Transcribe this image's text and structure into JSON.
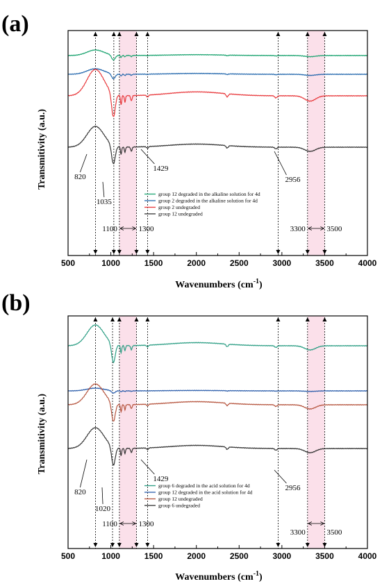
{
  "chart_data": [
    {
      "type": "line",
      "panel_label": "(a)",
      "xlabel": "Wavenumbers (cm",
      "xlabel_sup": "-1",
      "xlabel_end": ")",
      "ylabel": "Transmitivity (a.u.)",
      "xlim": [
        500,
        4000
      ],
      "xticks": [
        500,
        1000,
        1500,
        2000,
        2500,
        3000,
        3500,
        4000
      ],
      "bands": [
        [
          1100,
          1300
        ],
        [
          3300,
          3500
        ]
      ],
      "vlines": [
        820,
        1035,
        1100,
        1300,
        1429,
        2956,
        3300,
        3500
      ],
      "annotations": [
        {
          "text": "820",
          "x": 820
        },
        {
          "text": "1035",
          "x": 1035
        },
        {
          "text": "1100",
          "x": 1100
        },
        {
          "text": "1300",
          "x": 1300
        },
        {
          "text": "1429",
          "x": 1429
        },
        {
          "text": "2956",
          "x": 2956
        },
        {
          "text": "3300",
          "x": 3300
        },
        {
          "text": "3500",
          "x": 3500
        }
      ],
      "series": [
        {
          "name": "group 12 degraded in the alkaline solution for 4d",
          "color": "#1aa36f"
        },
        {
          "name": "group 2 degraded in the alkaline solution for 4d",
          "color": "#2166ac"
        },
        {
          "name": "group 2 undegraded",
          "color": "#e8373a"
        },
        {
          "name": "group 12 undegraded",
          "color": "#333333"
        }
      ]
    },
    {
      "type": "line",
      "panel_label": "(b)",
      "xlabel": "Wavenumbers (cm",
      "xlabel_sup": "-1",
      "xlabel_end": ")",
      "ylabel": "Transmitivity (a.u.)",
      "xlim": [
        500,
        4000
      ],
      "xticks": [
        500,
        1000,
        1500,
        2000,
        2500,
        3000,
        3500,
        4000
      ],
      "bands": [
        [
          1100,
          1300
        ],
        [
          3300,
          3500
        ]
      ],
      "vlines": [
        820,
        1020,
        1100,
        1300,
        1429,
        2956,
        3300,
        3500
      ],
      "annotations": [
        {
          "text": "820",
          "x": 820
        },
        {
          "text": "1020",
          "x": 1020
        },
        {
          "text": "1100",
          "x": 1100
        },
        {
          "text": "1300",
          "x": 1300
        },
        {
          "text": "1429",
          "x": 1429
        },
        {
          "text": "2956",
          "x": 2956
        },
        {
          "text": "3300",
          "x": 3300
        },
        {
          "text": "3500",
          "x": 3500
        }
      ],
      "series": [
        {
          "name": "group 6 degraded in the acid solution for 4d",
          "color": "#2a9d83"
        },
        {
          "name": "group 12 degraded in the acid solution for 4d",
          "color": "#2a5caa"
        },
        {
          "name": "group 12 undegraded",
          "color": "#b5533c"
        },
        {
          "name": "group 6 undegraded",
          "color": "#333333"
        }
      ]
    }
  ]
}
